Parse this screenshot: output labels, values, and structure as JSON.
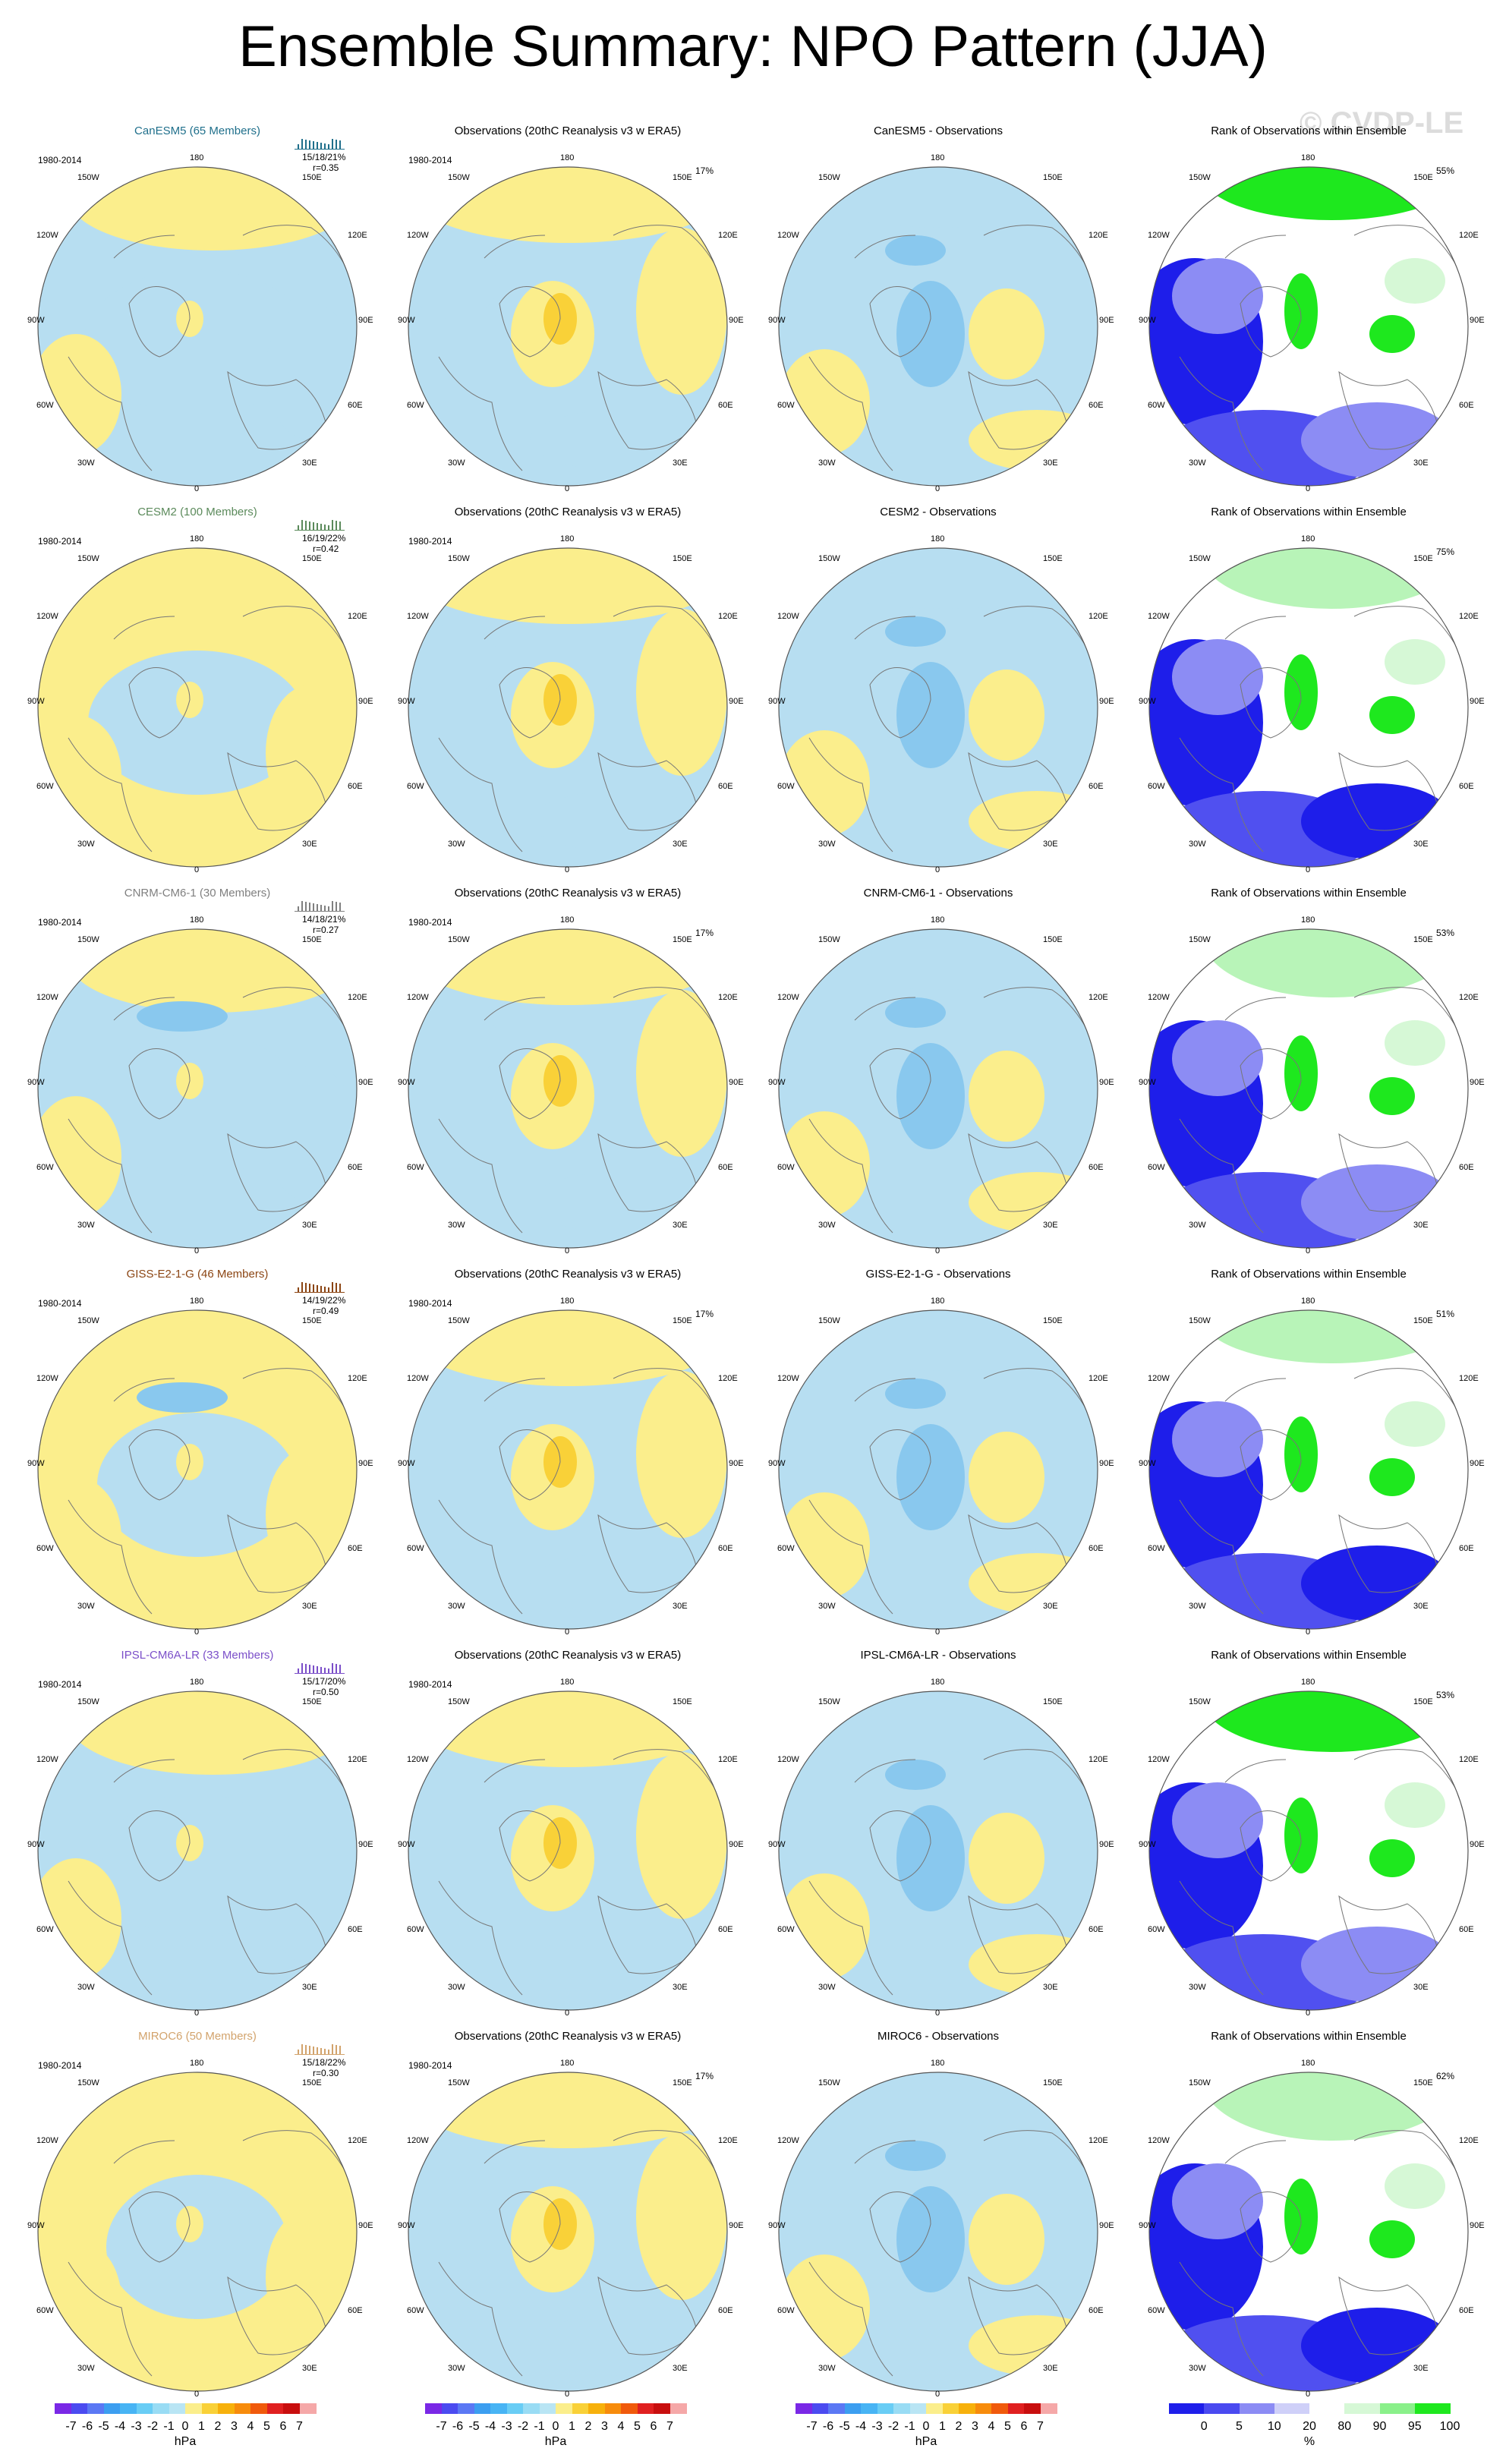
{
  "title": "Ensemble Summary: NPO Pattern (JJA)",
  "watermark": "© CVDP-LE",
  "colors": {
    "positive_light": "#fbee8c",
    "negative_light": "#b7def1",
    "positive_mid": "#f9d138",
    "negative_mid": "#89c8ee",
    "rank_low": "#1e1eea",
    "rank_high": "#1ee81e"
  },
  "lon_labels": {
    "top": "180",
    "bottom": "0",
    "ul": "150W",
    "ur": "150E",
    "l1": "120W",
    "r1": "120E",
    "l2": "90W",
    "r2": "90E",
    "l3": "60W",
    "r3": "60E",
    "bl": "30W",
    "br": "30E"
  },
  "rows": [
    {
      "model": "CanESM5 (65 Members)",
      "model_color": "#1f6f8b",
      "period": "1980-2014",
      "stats": "15/18/21%",
      "corr": "r=0.35",
      "obs_title": "Observations (20thC Reanalysis v3 w ERA5)",
      "obs_period": "1980-2014",
      "obs_pct": "17%",
      "diff_title": "CanESM5 - Observations",
      "rank_title": "Rank of Observations within Ensemble",
      "rank_pct": "55%"
    },
    {
      "model": "CESM2 (100 Members)",
      "model_color": "#5b8a5b",
      "period": "1980-2014",
      "stats": "16/19/22%",
      "corr": "r=0.42",
      "obs_title": "Observations (20thC Reanalysis v3 w ERA5)",
      "obs_period": "1980-2014",
      "obs_pct": "",
      "diff_title": "CESM2 - Observations",
      "rank_title": "Rank of Observations within Ensemble",
      "rank_pct": "75%"
    },
    {
      "model": "CNRM-CM6-1 (30 Members)",
      "model_color": "#808080",
      "period": "1980-2014",
      "stats": "14/18/21%",
      "corr": "r=0.27",
      "obs_title": "Observations (20thC Reanalysis v3 w ERA5)",
      "obs_period": "1980-2014",
      "obs_pct": "17%",
      "diff_title": "CNRM-CM6-1 - Observations",
      "rank_title": "Rank of Observations within Ensemble",
      "rank_pct": "53%"
    },
    {
      "model": "GISS-E2-1-G (46 Members)",
      "model_color": "#8b4513",
      "period": "1980-2014",
      "stats": "14/19/22%",
      "corr": "r=0.49",
      "obs_title": "Observations (20thC Reanalysis v3 w ERA5)",
      "obs_period": "1980-2014",
      "obs_pct": "17%",
      "diff_title": "GISS-E2-1-G - Observations",
      "rank_title": "Rank of Observations within Ensemble",
      "rank_pct": "51%"
    },
    {
      "model": "IPSL-CM6A-LR (33 Members)",
      "model_color": "#7b4fc9",
      "period": "1980-2014",
      "stats": "15/17/20%",
      "corr": "r=0.50",
      "obs_title": "Observations (20thC Reanalysis v3 w ERA5)",
      "obs_period": "1980-2014",
      "obs_pct": "",
      "diff_title": "IPSL-CM6A-LR - Observations",
      "rank_title": "Rank of Observations within Ensemble",
      "rank_pct": "53%"
    },
    {
      "model": "MIROC6 (50 Members)",
      "model_color": "#d2a36c",
      "period": "1980-2014",
      "stats": "15/18/22%",
      "corr": "r=0.30",
      "obs_title": "Observations (20thC Reanalysis v3 w ERA5)",
      "obs_period": "1980-2014",
      "obs_pct": "17%",
      "diff_title": "MIROC6 - Observations",
      "rank_title": "Rank of Observations within Ensemble",
      "rank_pct": "62%"
    }
  ],
  "colorbars": [
    {
      "labels": [
        "-7",
        "-6",
        "-5",
        "-4",
        "-3",
        "-2",
        "-1",
        "0",
        "1",
        "2",
        "3",
        "4",
        "5",
        "6",
        "7"
      ],
      "unit": "hPa",
      "colors": [
        "#7a28e6",
        "#4b4bf0",
        "#5b78f4",
        "#3c9ef0",
        "#48b4f4",
        "#69cdf5",
        "#99dcf4",
        "#b9e5f4",
        "#fbee8c",
        "#f9d138",
        "#f7b10c",
        "#f78c0c",
        "#f05a0c",
        "#e02020",
        "#c80e0e",
        "#f5a8a8"
      ]
    },
    {
      "labels": [
        "-7",
        "-6",
        "-5",
        "-4",
        "-3",
        "-2",
        "-1",
        "0",
        "1",
        "2",
        "3",
        "4",
        "5",
        "6",
        "7"
      ],
      "unit": "hPa",
      "colors": [
        "#7a28e6",
        "#4b4bf0",
        "#5b78f4",
        "#3c9ef0",
        "#48b4f4",
        "#69cdf5",
        "#99dcf4",
        "#b9e5f4",
        "#fbee8c",
        "#f9d138",
        "#f7b10c",
        "#f78c0c",
        "#f05a0c",
        "#e02020",
        "#c80e0e",
        "#f5a8a8"
      ]
    },
    {
      "labels": [
        "-7",
        "-6",
        "-5",
        "-4",
        "-3",
        "-2",
        "-1",
        "0",
        "1",
        "2",
        "3",
        "4",
        "5",
        "6",
        "7"
      ],
      "unit": "hPa",
      "colors": [
        "#7a28e6",
        "#4b4bf0",
        "#5b78f4",
        "#3c9ef0",
        "#48b4f4",
        "#69cdf5",
        "#99dcf4",
        "#b9e5f4",
        "#fbee8c",
        "#f9d138",
        "#f7b10c",
        "#f78c0c",
        "#f05a0c",
        "#e02020",
        "#c80e0e",
        "#f5a8a8"
      ]
    },
    {
      "labels": [
        "0",
        "5",
        "10",
        "20",
        "80",
        "90",
        "95",
        "100"
      ],
      "unit": "%",
      "colors": [
        "#1e1eea",
        "#4a4af0",
        "#8c8cf4",
        "#cfd0f8",
        "#ffffff",
        "#d6f8d6",
        "#8af08a",
        "#1ee81e"
      ]
    }
  ],
  "chart_data": {
    "type": "heatmap",
    "title": "Ensemble Summary: NPO Pattern (JJA)",
    "panels_per_row": [
      "model ensemble pattern",
      "observations",
      "model - observations",
      "rank of observations within ensemble"
    ],
    "models": [
      {
        "name": "CanESM5",
        "members": 65,
        "pct_low": 15,
        "pct_mid": 18,
        "pct_high": 21,
        "r": 0.35,
        "obs_pct": 17,
        "rank_pct": 55
      },
      {
        "name": "CESM2",
        "members": 100,
        "pct_low": 16,
        "pct_mid": 19,
        "pct_high": 22,
        "r": 0.42,
        "obs_pct": null,
        "rank_pct": 75
      },
      {
        "name": "CNRM-CM6-1",
        "members": 30,
        "pct_low": 14,
        "pct_mid": 18,
        "pct_high": 21,
        "r": 0.27,
        "obs_pct": 17,
        "rank_pct": 53
      },
      {
        "name": "GISS-E2-1-G",
        "members": 46,
        "pct_low": 14,
        "pct_mid": 19,
        "pct_high": 22,
        "r": 0.49,
        "obs_pct": 17,
        "rank_pct": 51
      },
      {
        "name": "IPSL-CM6A-LR",
        "members": 33,
        "pct_low": 15,
        "pct_mid": 17,
        "pct_high": 20,
        "r": 0.5,
        "obs_pct": null,
        "rank_pct": 53
      },
      {
        "name": "MIROC6",
        "members": 50,
        "pct_low": 15,
        "pct_mid": 18,
        "pct_high": 22,
        "r": 0.3,
        "obs_pct": 17,
        "rank_pct": 62
      }
    ],
    "hpa_levels": [
      -7,
      -6,
      -5,
      -4,
      -3,
      -2,
      -1,
      0,
      1,
      2,
      3,
      4,
      5,
      6,
      7
    ],
    "rank_levels": [
      0,
      5,
      10,
      20,
      80,
      90,
      95,
      100
    ],
    "period": "1980-2014"
  }
}
